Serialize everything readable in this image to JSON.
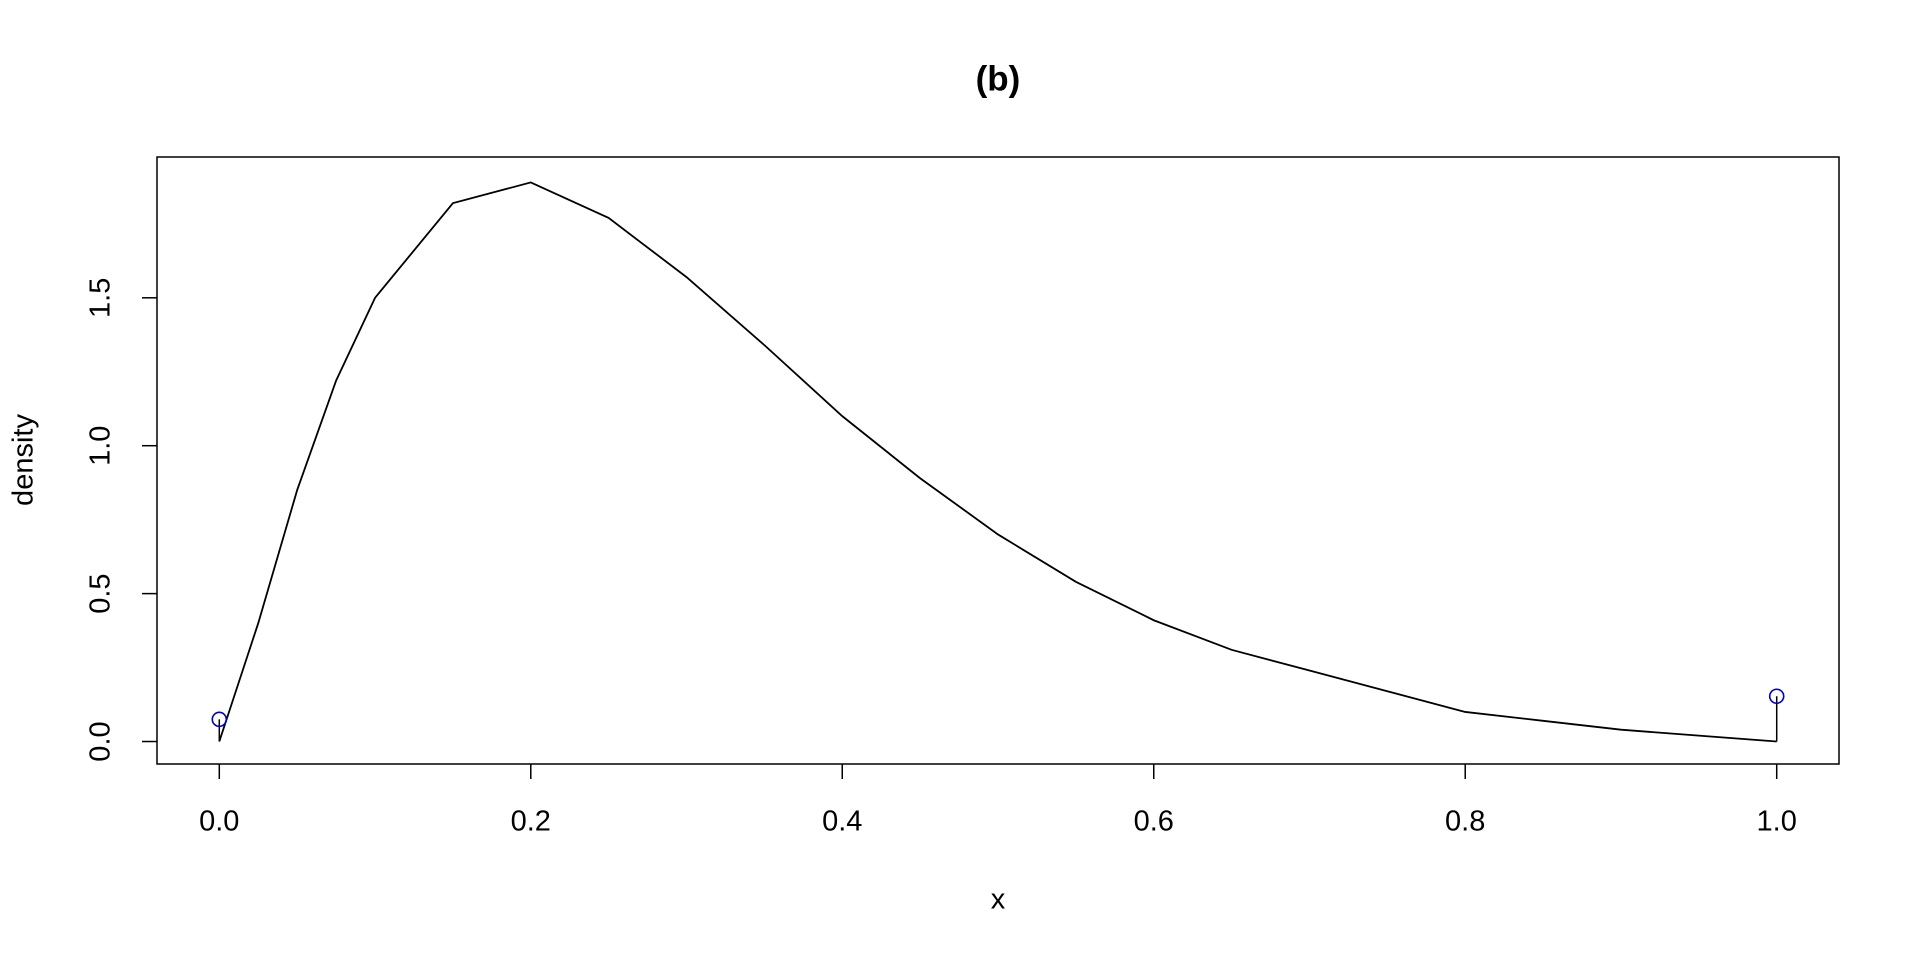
{
  "chart_data": {
    "type": "line",
    "title": "(b)",
    "x_label": "x",
    "y_label": "density",
    "x": [
      0,
      0.025,
      0.05,
      0.075,
      0.1,
      0.15,
      0.2,
      0.25,
      0.3,
      0.35,
      0.4,
      0.45,
      0.5,
      0.55,
      0.6,
      0.65,
      0.7,
      0.75,
      0.8,
      0.85,
      0.9,
      0.95,
      1
    ],
    "values": [
      0,
      0.4,
      0.85,
      1.22,
      1.5,
      1.82,
      1.89,
      1.77,
      1.57,
      1.34,
      1.1,
      0.89,
      0.7,
      0.54,
      0.41,
      0.31,
      0.24,
      0.17,
      0.1,
      0.07,
      0.04,
      0.02,
      0
    ],
    "color": "#000000",
    "points": {
      "x": [
        0,
        1
      ],
      "values": [
        0.075,
        0.153
      ],
      "color": "#0000cd"
    },
    "xlim": [
      -0.04,
      1.04
    ],
    "ylim": [
      -0.076,
      1.976
    ],
    "xticks": [
      {
        "value": 0,
        "label": "0.0"
      },
      0.2,
      0.4,
      0.6,
      0.8,
      {
        "value": 1,
        "label": "1.0"
      }
    ],
    "yticks": [
      {
        "value": 0,
        "label": "0.0"
      },
      0.5,
      {
        "value": 1,
        "label": "1.0"
      },
      1.5
    ],
    "grid": false
  }
}
